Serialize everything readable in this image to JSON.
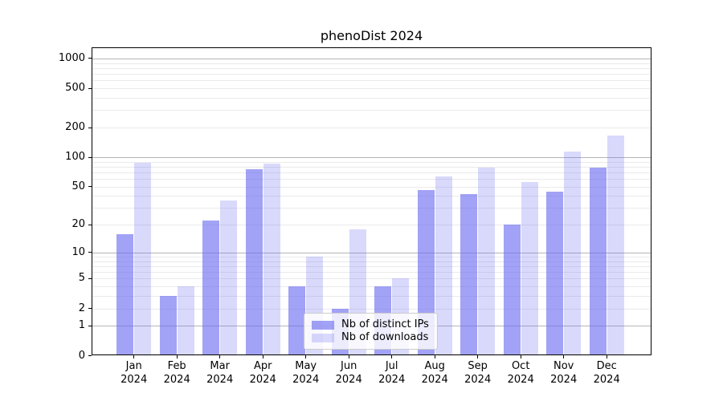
{
  "chart": {
    "title": "phenoDist 2024"
  },
  "chart_data": {
    "type": "bar",
    "title": "phenoDist 2024",
    "categories": [
      "Jan 2024",
      "Feb 2024",
      "Mar 2024",
      "Apr 2024",
      "May 2024",
      "Jun 2024",
      "Jul 2024",
      "Aug 2024",
      "Sep 2024",
      "Oct 2024",
      "Nov 2024",
      "Dec 2024"
    ],
    "months": [
      "Jan",
      "Feb",
      "Mar",
      "Apr",
      "May",
      "Jun",
      "Jul",
      "Aug",
      "Sep",
      "Oct",
      "Nov",
      "Dec"
    ],
    "year": "2024",
    "series": [
      {
        "name": "Nb of distinct IPs",
        "values": [
          16,
          3,
          22,
          76,
          4,
          2,
          4,
          46,
          42,
          20,
          44,
          79
        ],
        "color": "rgba(105,105,240,0.62)"
      },
      {
        "name": "Nb of downloads",
        "values": [
          87,
          4,
          36,
          86,
          9,
          18,
          5,
          63,
          79,
          56,
          115,
          165
        ],
        "color": "rgba(105,105,240,0.25)"
      }
    ],
    "xlabel": "",
    "ylabel": "",
    "yscale": "log1p",
    "ylim": [
      0,
      1175
    ],
    "yticks": [
      0,
      1,
      2,
      5,
      10,
      20,
      50,
      100,
      200,
      500,
      1000
    ],
    "ytick_labels": [
      "0",
      "1",
      "2",
      "5",
      "10",
      "20",
      "50",
      "100",
      "200",
      "500",
      "1000"
    ],
    "major_grid_values": [
      1,
      10,
      100,
      1000
    ],
    "minor_grid_values": [
      2,
      3,
      4,
      5,
      6,
      7,
      8,
      9,
      20,
      30,
      40,
      50,
      60,
      70,
      80,
      90,
      200,
      300,
      400,
      500,
      600,
      700,
      800,
      900
    ],
    "grid": true,
    "legend_position": "lower center",
    "colors": {
      "bar_distinct_ips": "rgba(105,105,240,0.62)",
      "bar_downloads": "rgba(105,105,240,0.25)",
      "major_grid": "#b5b5b5",
      "minor_grid": "#eaeaea",
      "axis": "#000000",
      "legend_border": "#cccccc"
    }
  }
}
